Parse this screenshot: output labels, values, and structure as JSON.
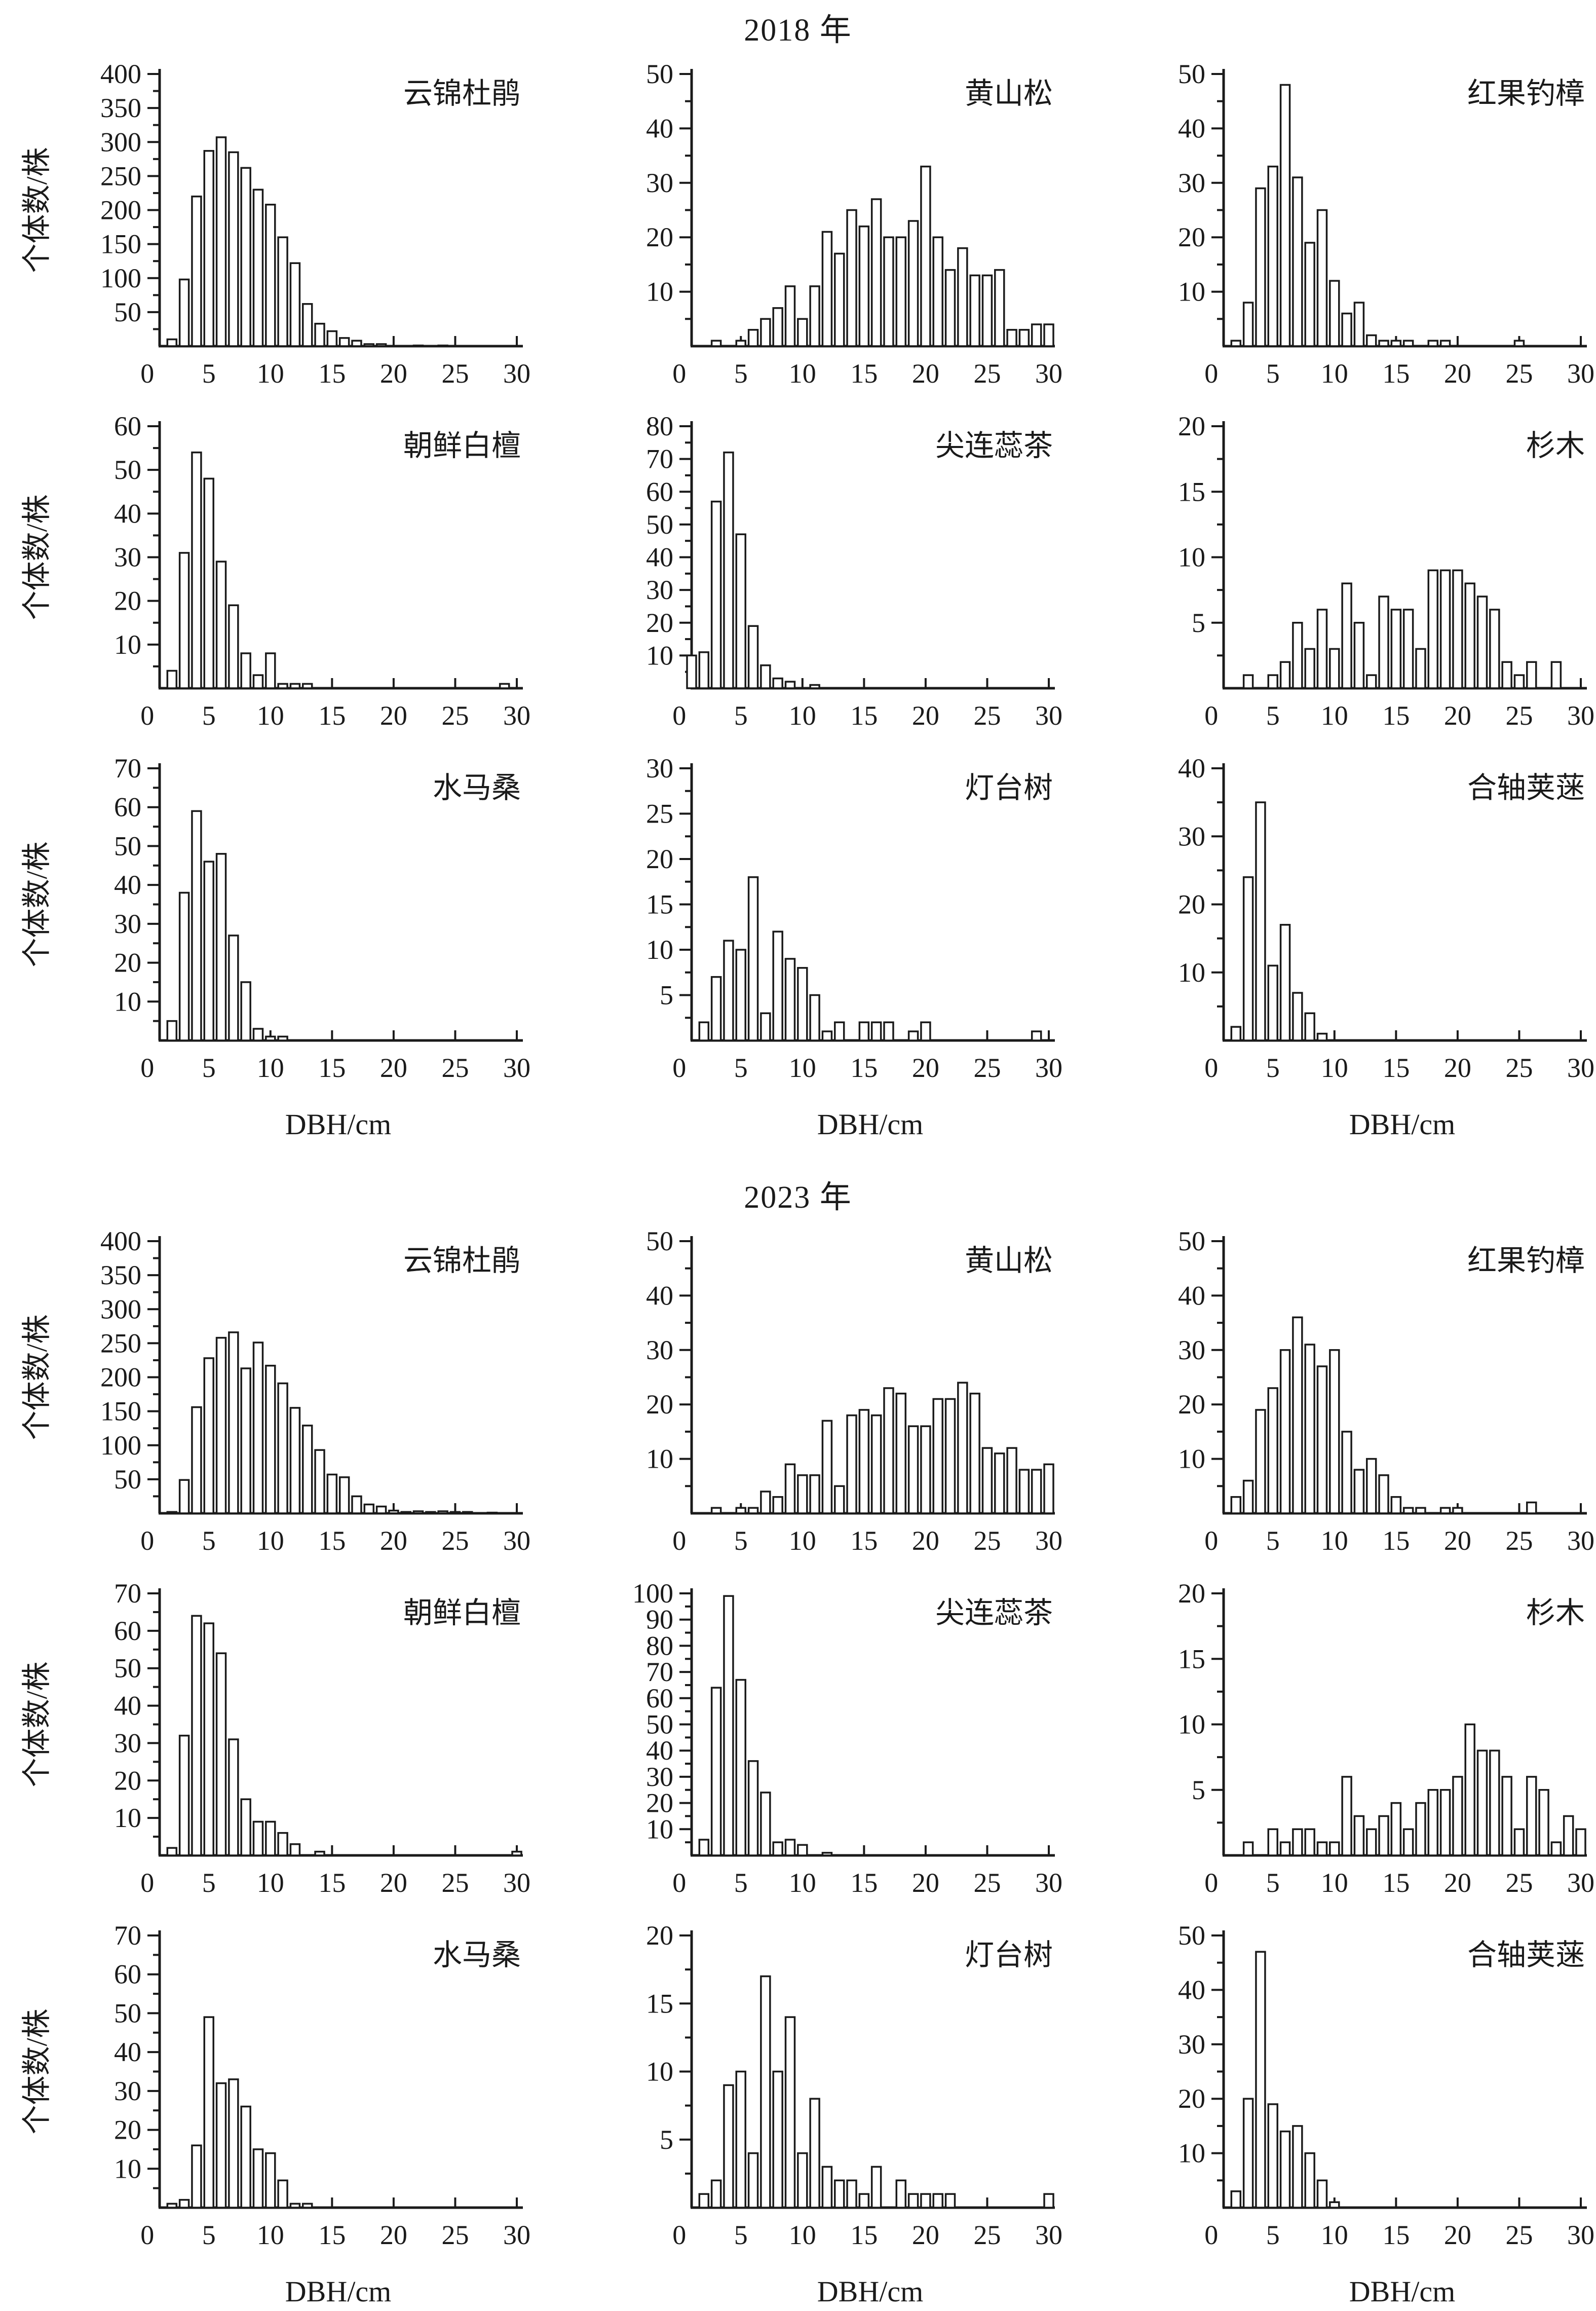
{
  "layout": {
    "background": "#ffffff",
    "ink": "#1a1a1a",
    "bar_fill": "#ffffff"
  },
  "labels": {
    "ylabel": "个体数/株",
    "xlabel": "DBH/cm",
    "year_2018": "2018 年",
    "year_2023": "2023 年"
  },
  "chart_data": [
    {
      "type": "bar",
      "year": "2018",
      "title": "云锦杜鹃",
      "ylim": [
        0,
        400
      ],
      "ytick": 50,
      "xlim": [
        0,
        30
      ],
      "xticks": [
        0,
        5,
        10,
        15,
        20,
        25,
        30
      ],
      "xlabel": "DBH/cm",
      "ylabel": "个体数/株",
      "x": [
        2,
        3,
        4,
        5,
        6,
        7,
        8,
        9,
        10,
        11,
        12,
        13,
        14,
        15,
        16,
        17,
        18,
        19,
        22,
        24
      ],
      "values": [
        10,
        98,
        220,
        287,
        307,
        285,
        262,
        230,
        208,
        160,
        122,
        62,
        33,
        22,
        12,
        8,
        3,
        3,
        1,
        1
      ]
    },
    {
      "type": "bar",
      "year": "2018",
      "title": "黄山松",
      "ylim": [
        0,
        50
      ],
      "ytick": 10,
      "xlim": [
        0,
        30
      ],
      "xticks": [
        0,
        5,
        10,
        15,
        20,
        25,
        30
      ],
      "xlabel": "DBH/cm",
      "ylabel": "个体数/株",
      "x": [
        3,
        5,
        6,
        7,
        8,
        9,
        10,
        11,
        12,
        13,
        14,
        15,
        16,
        17,
        18,
        19,
        20,
        21,
        22,
        23,
        24,
        25,
        26,
        27,
        28,
        29,
        30
      ],
      "values": [
        1,
        1,
        3,
        5,
        7,
        11,
        5,
        11,
        21,
        17,
        25,
        22,
        27,
        20,
        20,
        23,
        33,
        20,
        14,
        18,
        13,
        13,
        14,
        3,
        3,
        4,
        4
      ]
    },
    {
      "type": "bar",
      "year": "2018",
      "title": "红果钓樟",
      "ylim": [
        0,
        50
      ],
      "ytick": 10,
      "xlim": [
        0,
        30
      ],
      "xticks": [
        0,
        5,
        10,
        15,
        20,
        25,
        30
      ],
      "xlabel": "DBH/cm",
      "ylabel": "个体数/株",
      "x": [
        2,
        3,
        4,
        5,
        6,
        7,
        8,
        9,
        10,
        11,
        12,
        13,
        14,
        15,
        16,
        18,
        19,
        25
      ],
      "values": [
        1,
        8,
        29,
        33,
        48,
        31,
        19,
        25,
        12,
        6,
        8,
        2,
        1,
        1,
        1,
        1,
        1,
        1
      ]
    },
    {
      "type": "bar",
      "year": "2018",
      "title": "朝鲜白檀",
      "ylim": [
        0,
        60
      ],
      "ytick": 10,
      "xlim": [
        0,
        30
      ],
      "xticks": [
        0,
        5,
        10,
        15,
        20,
        25,
        30
      ],
      "xlabel": "DBH/cm",
      "ylabel": "个体数/株",
      "x": [
        2,
        3,
        4,
        5,
        6,
        7,
        8,
        9,
        10,
        11,
        12,
        13,
        29
      ],
      "values": [
        4,
        31,
        54,
        48,
        29,
        19,
        8,
        3,
        8,
        1,
        1,
        1,
        1
      ]
    },
    {
      "type": "bar",
      "year": "2018",
      "title": "尖连蕊茶",
      "ylim": [
        0,
        80
      ],
      "ytick": 10,
      "xlim": [
        0,
        30
      ],
      "xticks": [
        0,
        5,
        10,
        15,
        20,
        25,
        30
      ],
      "xlabel": "DBH/cm",
      "ylabel": "个体数/株",
      "x": [
        1,
        2,
        3,
        4,
        5,
        6,
        7,
        8,
        9,
        11
      ],
      "values": [
        10,
        11,
        57,
        72,
        47,
        19,
        7,
        3,
        2,
        1
      ]
    },
    {
      "type": "bar",
      "year": "2018",
      "title": "杉木",
      "ylim": [
        0,
        20
      ],
      "ytick": 5,
      "xlim": [
        0,
        30
      ],
      "xticks": [
        0,
        5,
        10,
        15,
        20,
        25,
        30
      ],
      "xlabel": "DBH/cm",
      "ylabel": "个体数/株",
      "x": [
        3,
        5,
        6,
        7,
        8,
        9,
        10,
        11,
        12,
        13,
        14,
        15,
        16,
        17,
        18,
        19,
        20,
        21,
        22,
        23,
        24,
        25,
        26,
        28
      ],
      "values": [
        1,
        1,
        2,
        5,
        3,
        6,
        3,
        8,
        5,
        1,
        7,
        6,
        6,
        3,
        9,
        9,
        9,
        8,
        7,
        6,
        2,
        1,
        2,
        2
      ]
    },
    {
      "type": "bar",
      "year": "2018",
      "title": "水马桑",
      "ylim": [
        0,
        70
      ],
      "ytick": 10,
      "xlim": [
        0,
        30
      ],
      "xticks": [
        0,
        5,
        10,
        15,
        20,
        25,
        30
      ],
      "xlabel": "DBH/cm",
      "ylabel": "个体数/株",
      "x": [
        2,
        3,
        4,
        5,
        6,
        7,
        8,
        9,
        10,
        11
      ],
      "values": [
        5,
        38,
        59,
        46,
        48,
        27,
        15,
        3,
        1,
        1
      ]
    },
    {
      "type": "bar",
      "year": "2018",
      "title": "灯台树",
      "ylim": [
        0,
        30
      ],
      "ytick": 5,
      "xlim": [
        0,
        30
      ],
      "xticks": [
        0,
        5,
        10,
        15,
        20,
        25,
        30
      ],
      "xlabel": "DBH/cm",
      "ylabel": "个体数/株",
      "x": [
        2,
        3,
        4,
        5,
        6,
        7,
        8,
        9,
        10,
        11,
        12,
        13,
        15,
        16,
        17,
        19,
        20,
        29
      ],
      "values": [
        2,
        7,
        11,
        10,
        18,
        3,
        12,
        9,
        8,
        5,
        1,
        2,
        2,
        2,
        2,
        1,
        2,
        1
      ]
    },
    {
      "type": "bar",
      "year": "2018",
      "title": "合轴荚蒾",
      "ylim": [
        0,
        40
      ],
      "ytick": 10,
      "xlim": [
        0,
        30
      ],
      "xticks": [
        0,
        5,
        10,
        15,
        20,
        25,
        30
      ],
      "xlabel": "DBH/cm",
      "ylabel": "个体数/株",
      "x": [
        2,
        3,
        4,
        5,
        6,
        7,
        8,
        9
      ],
      "values": [
        2,
        24,
        35,
        11,
        17,
        7,
        4,
        1
      ]
    },
    {
      "type": "bar",
      "year": "2023",
      "title": "云锦杜鹃",
      "ylim": [
        0,
        400
      ],
      "ytick": 50,
      "xlim": [
        0,
        30
      ],
      "xticks": [
        0,
        5,
        10,
        15,
        20,
        25,
        30
      ],
      "xlabel": "DBH/cm",
      "ylabel": "个体数/株",
      "x": [
        2,
        3,
        4,
        5,
        6,
        7,
        8,
        9,
        10,
        11,
        12,
        13,
        14,
        15,
        16,
        17,
        18,
        19,
        20,
        21,
        22,
        23,
        24,
        25,
        26,
        28
      ],
      "values": [
        2,
        49,
        156,
        228,
        258,
        266,
        213,
        251,
        217,
        191,
        155,
        129,
        93,
        57,
        53,
        25,
        13,
        10,
        4,
        2,
        3,
        2,
        3,
        2,
        2,
        1
      ]
    },
    {
      "type": "bar",
      "year": "2023",
      "title": "黄山松",
      "ylim": [
        0,
        50
      ],
      "ytick": 10,
      "xlim": [
        0,
        30
      ],
      "xticks": [
        0,
        5,
        10,
        15,
        20,
        25,
        30
      ],
      "xlabel": "DBH/cm",
      "ylabel": "个体数/株",
      "x": [
        3,
        5,
        6,
        7,
        8,
        9,
        10,
        11,
        12,
        13,
        14,
        15,
        16,
        17,
        18,
        19,
        20,
        21,
        22,
        23,
        24,
        25,
        26,
        27,
        28,
        29,
        30
      ],
      "values": [
        1,
        1,
        1,
        4,
        3,
        9,
        7,
        7,
        17,
        5,
        18,
        19,
        18,
        23,
        22,
        16,
        16,
        21,
        21,
        24,
        22,
        12,
        11,
        12,
        8,
        8,
        9
      ]
    },
    {
      "type": "bar",
      "year": "2023",
      "title": "红果钓樟",
      "ylim": [
        0,
        50
      ],
      "ytick": 10,
      "xlim": [
        0,
        30
      ],
      "xticks": [
        0,
        5,
        10,
        15,
        20,
        25,
        30
      ],
      "xlabel": "DBH/cm",
      "ylabel": "个体数/株",
      "x": [
        2,
        3,
        4,
        5,
        6,
        7,
        8,
        9,
        10,
        11,
        12,
        13,
        14,
        15,
        16,
        17,
        19,
        20,
        26
      ],
      "values": [
        3,
        6,
        19,
        23,
        30,
        36,
        31,
        27,
        30,
        15,
        8,
        10,
        7,
        3,
        1,
        1,
        1,
        1,
        2
      ]
    },
    {
      "type": "bar",
      "year": "2023",
      "title": "朝鲜白檀",
      "ylim": [
        0,
        70
      ],
      "ytick": 10,
      "xlim": [
        0,
        30
      ],
      "xticks": [
        0,
        5,
        10,
        15,
        20,
        25,
        30
      ],
      "xlabel": "DBH/cm",
      "ylabel": "个体数/株",
      "x": [
        2,
        3,
        4,
        5,
        6,
        7,
        8,
        9,
        10,
        11,
        12,
        14,
        30
      ],
      "values": [
        2,
        32,
        64,
        62,
        54,
        31,
        15,
        9,
        9,
        6,
        3,
        1,
        1
      ]
    },
    {
      "type": "bar",
      "year": "2023",
      "title": "尖连蕊茶",
      "ylim": [
        0,
        100
      ],
      "ytick": 10,
      "xlim": [
        0,
        30
      ],
      "xticks": [
        0,
        5,
        10,
        15,
        20,
        25,
        30
      ],
      "xlabel": "DBH/cm",
      "ylabel": "个体数/株",
      "x": [
        2,
        3,
        4,
        5,
        6,
        7,
        8,
        9,
        10,
        12
      ],
      "values": [
        6,
        64,
        99,
        67,
        36,
        24,
        5,
        6,
        4,
        1
      ]
    },
    {
      "type": "bar",
      "year": "2023",
      "title": "杉木",
      "ylim": [
        0,
        20
      ],
      "ytick": 5,
      "xlim": [
        0,
        30
      ],
      "xticks": [
        0,
        5,
        10,
        15,
        20,
        25,
        30
      ],
      "xlabel": "DBH/cm",
      "ylabel": "个体数/株",
      "x": [
        3,
        5,
        6,
        7,
        8,
        9,
        10,
        11,
        12,
        13,
        14,
        15,
        16,
        17,
        18,
        19,
        20,
        21,
        22,
        23,
        24,
        25,
        26,
        27,
        28,
        29,
        30
      ],
      "values": [
        1,
        2,
        1,
        2,
        2,
        1,
        1,
        6,
        3,
        2,
        3,
        4,
        2,
        4,
        5,
        5,
        6,
        10,
        8,
        8,
        6,
        2,
        6,
        5,
        1,
        3,
        2
      ]
    },
    {
      "type": "bar",
      "year": "2023",
      "title": "水马桑",
      "ylim": [
        0,
        70
      ],
      "ytick": 10,
      "xlim": [
        0,
        30
      ],
      "xticks": [
        0,
        5,
        10,
        15,
        20,
        25,
        30
      ],
      "xlabel": "DBH/cm",
      "ylabel": "个体数/株",
      "x": [
        2,
        3,
        4,
        5,
        6,
        7,
        8,
        9,
        10,
        11,
        12,
        13
      ],
      "values": [
        1,
        2,
        16,
        49,
        32,
        33,
        26,
        15,
        14,
        7,
        1,
        1
      ]
    },
    {
      "type": "bar",
      "year": "2023",
      "title": "灯台树",
      "ylim": [
        0,
        20
      ],
      "ytick": 5,
      "xlim": [
        0,
        30
      ],
      "xticks": [
        0,
        5,
        10,
        15,
        20,
        25,
        30
      ],
      "xlabel": "DBH/cm",
      "ylabel": "个体数/株",
      "x": [
        2,
        3,
        4,
        5,
        6,
        7,
        8,
        9,
        10,
        11,
        12,
        13,
        14,
        15,
        16,
        18,
        19,
        20,
        21,
        22,
        30
      ],
      "values": [
        1,
        2,
        9,
        10,
        4,
        17,
        10,
        14,
        4,
        8,
        3,
        2,
        2,
        1,
        3,
        2,
        1,
        1,
        1,
        1,
        1
      ]
    },
    {
      "type": "bar",
      "year": "2023",
      "title": "合轴荚蒾",
      "ylim": [
        0,
        50
      ],
      "ytick": 10,
      "xlim": [
        0,
        30
      ],
      "xticks": [
        0,
        5,
        10,
        15,
        20,
        25,
        30
      ],
      "xlabel": "DBH/cm",
      "ylabel": "个体数/株",
      "x": [
        2,
        3,
        4,
        5,
        6,
        7,
        8,
        9,
        10
      ],
      "values": [
        3,
        20,
        47,
        19,
        14,
        15,
        10,
        5,
        1
      ]
    }
  ]
}
